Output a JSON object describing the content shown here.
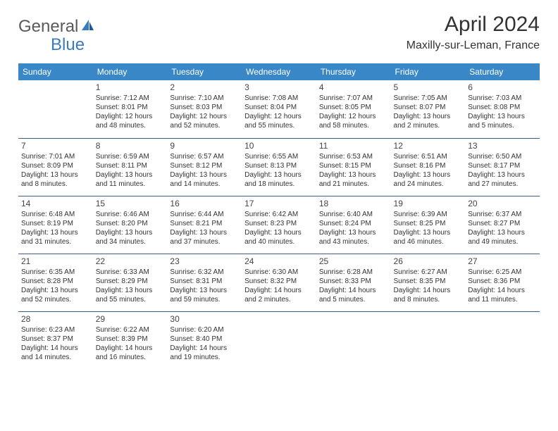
{
  "logo": {
    "general": "General",
    "blue": "Blue"
  },
  "title": "April 2024",
  "location": "Maxilly-sur-Leman, France",
  "colors": {
    "header_bg": "#3a87c8",
    "header_text": "#ffffff",
    "row_border": "#3a5f8a",
    "logo_blue": "#3a7bc0",
    "logo_gray": "#5a5a5a",
    "text": "#333333",
    "bg": "#ffffff"
  },
  "weekdays": [
    "Sunday",
    "Monday",
    "Tuesday",
    "Wednesday",
    "Thursday",
    "Friday",
    "Saturday"
  ],
  "cells": [
    [
      null,
      {
        "day": "1",
        "sunrise": "Sunrise: 7:12 AM",
        "sunset": "Sunset: 8:01 PM",
        "daylight": "Daylight: 12 hours and 48 minutes."
      },
      {
        "day": "2",
        "sunrise": "Sunrise: 7:10 AM",
        "sunset": "Sunset: 8:03 PM",
        "daylight": "Daylight: 12 hours and 52 minutes."
      },
      {
        "day": "3",
        "sunrise": "Sunrise: 7:08 AM",
        "sunset": "Sunset: 8:04 PM",
        "daylight": "Daylight: 12 hours and 55 minutes."
      },
      {
        "day": "4",
        "sunrise": "Sunrise: 7:07 AM",
        "sunset": "Sunset: 8:05 PM",
        "daylight": "Daylight: 12 hours and 58 minutes."
      },
      {
        "day": "5",
        "sunrise": "Sunrise: 7:05 AM",
        "sunset": "Sunset: 8:07 PM",
        "daylight": "Daylight: 13 hours and 2 minutes."
      },
      {
        "day": "6",
        "sunrise": "Sunrise: 7:03 AM",
        "sunset": "Sunset: 8:08 PM",
        "daylight": "Daylight: 13 hours and 5 minutes."
      }
    ],
    [
      {
        "day": "7",
        "sunrise": "Sunrise: 7:01 AM",
        "sunset": "Sunset: 8:09 PM",
        "daylight": "Daylight: 13 hours and 8 minutes."
      },
      {
        "day": "8",
        "sunrise": "Sunrise: 6:59 AM",
        "sunset": "Sunset: 8:11 PM",
        "daylight": "Daylight: 13 hours and 11 minutes."
      },
      {
        "day": "9",
        "sunrise": "Sunrise: 6:57 AM",
        "sunset": "Sunset: 8:12 PM",
        "daylight": "Daylight: 13 hours and 14 minutes."
      },
      {
        "day": "10",
        "sunrise": "Sunrise: 6:55 AM",
        "sunset": "Sunset: 8:13 PM",
        "daylight": "Daylight: 13 hours and 18 minutes."
      },
      {
        "day": "11",
        "sunrise": "Sunrise: 6:53 AM",
        "sunset": "Sunset: 8:15 PM",
        "daylight": "Daylight: 13 hours and 21 minutes."
      },
      {
        "day": "12",
        "sunrise": "Sunrise: 6:51 AM",
        "sunset": "Sunset: 8:16 PM",
        "daylight": "Daylight: 13 hours and 24 minutes."
      },
      {
        "day": "13",
        "sunrise": "Sunrise: 6:50 AM",
        "sunset": "Sunset: 8:17 PM",
        "daylight": "Daylight: 13 hours and 27 minutes."
      }
    ],
    [
      {
        "day": "14",
        "sunrise": "Sunrise: 6:48 AM",
        "sunset": "Sunset: 8:19 PM",
        "daylight": "Daylight: 13 hours and 31 minutes."
      },
      {
        "day": "15",
        "sunrise": "Sunrise: 6:46 AM",
        "sunset": "Sunset: 8:20 PM",
        "daylight": "Daylight: 13 hours and 34 minutes."
      },
      {
        "day": "16",
        "sunrise": "Sunrise: 6:44 AM",
        "sunset": "Sunset: 8:21 PM",
        "daylight": "Daylight: 13 hours and 37 minutes."
      },
      {
        "day": "17",
        "sunrise": "Sunrise: 6:42 AM",
        "sunset": "Sunset: 8:23 PM",
        "daylight": "Daylight: 13 hours and 40 minutes."
      },
      {
        "day": "18",
        "sunrise": "Sunrise: 6:40 AM",
        "sunset": "Sunset: 8:24 PM",
        "daylight": "Daylight: 13 hours and 43 minutes."
      },
      {
        "day": "19",
        "sunrise": "Sunrise: 6:39 AM",
        "sunset": "Sunset: 8:25 PM",
        "daylight": "Daylight: 13 hours and 46 minutes."
      },
      {
        "day": "20",
        "sunrise": "Sunrise: 6:37 AM",
        "sunset": "Sunset: 8:27 PM",
        "daylight": "Daylight: 13 hours and 49 minutes."
      }
    ],
    [
      {
        "day": "21",
        "sunrise": "Sunrise: 6:35 AM",
        "sunset": "Sunset: 8:28 PM",
        "daylight": "Daylight: 13 hours and 52 minutes."
      },
      {
        "day": "22",
        "sunrise": "Sunrise: 6:33 AM",
        "sunset": "Sunset: 8:29 PM",
        "daylight": "Daylight: 13 hours and 55 minutes."
      },
      {
        "day": "23",
        "sunrise": "Sunrise: 6:32 AM",
        "sunset": "Sunset: 8:31 PM",
        "daylight": "Daylight: 13 hours and 59 minutes."
      },
      {
        "day": "24",
        "sunrise": "Sunrise: 6:30 AM",
        "sunset": "Sunset: 8:32 PM",
        "daylight": "Daylight: 14 hours and 2 minutes."
      },
      {
        "day": "25",
        "sunrise": "Sunrise: 6:28 AM",
        "sunset": "Sunset: 8:33 PM",
        "daylight": "Daylight: 14 hours and 5 minutes."
      },
      {
        "day": "26",
        "sunrise": "Sunrise: 6:27 AM",
        "sunset": "Sunset: 8:35 PM",
        "daylight": "Daylight: 14 hours and 8 minutes."
      },
      {
        "day": "27",
        "sunrise": "Sunrise: 6:25 AM",
        "sunset": "Sunset: 8:36 PM",
        "daylight": "Daylight: 14 hours and 11 minutes."
      }
    ],
    [
      {
        "day": "28",
        "sunrise": "Sunrise: 6:23 AM",
        "sunset": "Sunset: 8:37 PM",
        "daylight": "Daylight: 14 hours and 14 minutes."
      },
      {
        "day": "29",
        "sunrise": "Sunrise: 6:22 AM",
        "sunset": "Sunset: 8:39 PM",
        "daylight": "Daylight: 14 hours and 16 minutes."
      },
      {
        "day": "30",
        "sunrise": "Sunrise: 6:20 AM",
        "sunset": "Sunset: 8:40 PM",
        "daylight": "Daylight: 14 hours and 19 minutes."
      },
      null,
      null,
      null,
      null
    ]
  ]
}
